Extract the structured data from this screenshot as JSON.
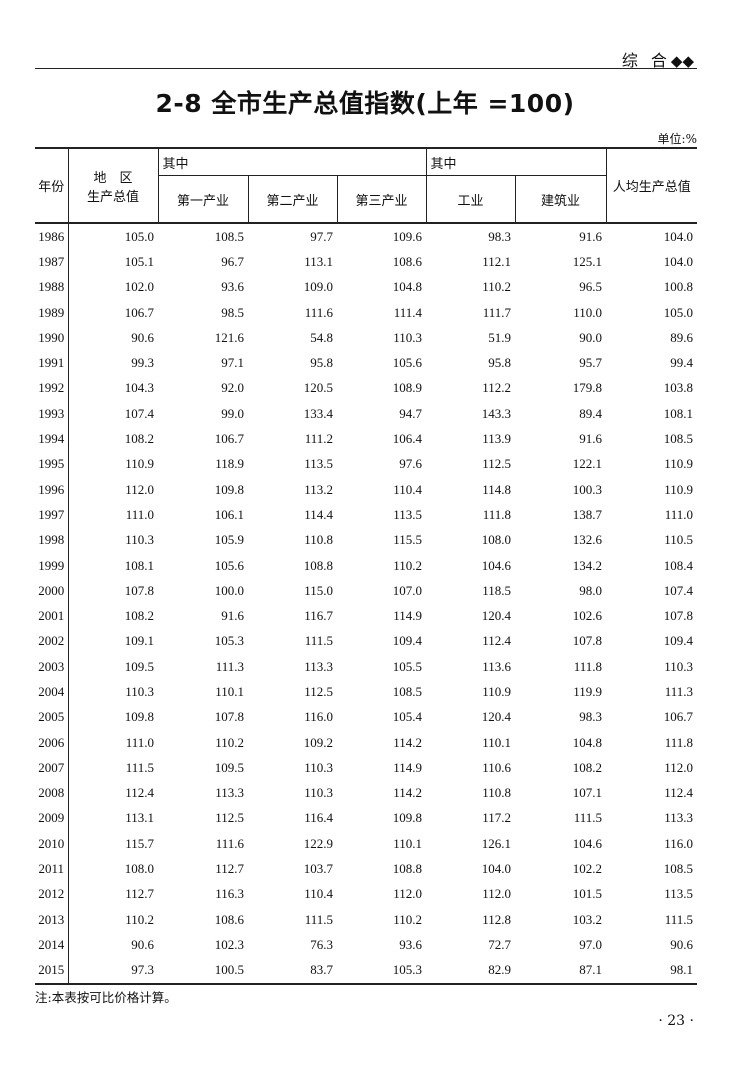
{
  "running_header": {
    "section": "综 合",
    "ornament": "◆◆"
  },
  "title": "2-8 全市生产总值指数(上年 =100)",
  "unit": "单位:%",
  "table": {
    "headers": {
      "year": "年份",
      "gdp_line1": "地　区",
      "gdp_line2": "生产总值",
      "group1": "其中",
      "group2": "其中",
      "primary": "第一产业",
      "secondary": "第二产业",
      "tertiary": "第三产业",
      "industry": "工业",
      "construction": "建筑业",
      "per_capita": "人均生产总值"
    },
    "rows": [
      [
        "1986",
        "105.0",
        "108.5",
        "97.7",
        "109.6",
        "98.3",
        "91.6",
        "104.0"
      ],
      [
        "1987",
        "105.1",
        "96.7",
        "113.1",
        "108.6",
        "112.1",
        "125.1",
        "104.0"
      ],
      [
        "1988",
        "102.0",
        "93.6",
        "109.0",
        "104.8",
        "110.2",
        "96.5",
        "100.8"
      ],
      [
        "1989",
        "106.7",
        "98.5",
        "111.6",
        "111.4",
        "111.7",
        "110.0",
        "105.0"
      ],
      [
        "1990",
        "90.6",
        "121.6",
        "54.8",
        "110.3",
        "51.9",
        "90.0",
        "89.6"
      ],
      [
        "1991",
        "99.3",
        "97.1",
        "95.8",
        "105.6",
        "95.8",
        "95.7",
        "99.4"
      ],
      [
        "1992",
        "104.3",
        "92.0",
        "120.5",
        "108.9",
        "112.2",
        "179.8",
        "103.8"
      ],
      [
        "1993",
        "107.4",
        "99.0",
        "133.4",
        "94.7",
        "143.3",
        "89.4",
        "108.1"
      ],
      [
        "1994",
        "108.2",
        "106.7",
        "111.2",
        "106.4",
        "113.9",
        "91.6",
        "108.5"
      ],
      [
        "1995",
        "110.9",
        "118.9",
        "113.5",
        "97.6",
        "112.5",
        "122.1",
        "110.9"
      ],
      [
        "1996",
        "112.0",
        "109.8",
        "113.2",
        "110.4",
        "114.8",
        "100.3",
        "110.9"
      ],
      [
        "1997",
        "111.0",
        "106.1",
        "114.4",
        "113.5",
        "111.8",
        "138.7",
        "111.0"
      ],
      [
        "1998",
        "110.3",
        "105.9",
        "110.8",
        "115.5",
        "108.0",
        "132.6",
        "110.5"
      ],
      [
        "1999",
        "108.1",
        "105.6",
        "108.8",
        "110.2",
        "104.6",
        "134.2",
        "108.4"
      ],
      [
        "2000",
        "107.8",
        "100.0",
        "115.0",
        "107.0",
        "118.5",
        "98.0",
        "107.4"
      ],
      [
        "2001",
        "108.2",
        "91.6",
        "116.7",
        "114.9",
        "120.4",
        "102.6",
        "107.8"
      ],
      [
        "2002",
        "109.1",
        "105.3",
        "111.5",
        "109.4",
        "112.4",
        "107.8",
        "109.4"
      ],
      [
        "2003",
        "109.5",
        "111.3",
        "113.3",
        "105.5",
        "113.6",
        "111.8",
        "110.3"
      ],
      [
        "2004",
        "110.3",
        "110.1",
        "112.5",
        "108.5",
        "110.9",
        "119.9",
        "111.3"
      ],
      [
        "2005",
        "109.8",
        "107.8",
        "116.0",
        "105.4",
        "120.4",
        "98.3",
        "106.7"
      ],
      [
        "2006",
        "111.0",
        "110.2",
        "109.2",
        "114.2",
        "110.1",
        "104.8",
        "111.8"
      ],
      [
        "2007",
        "111.5",
        "109.5",
        "110.3",
        "114.9",
        "110.6",
        "108.2",
        "112.0"
      ],
      [
        "2008",
        "112.4",
        "113.3",
        "110.3",
        "114.2",
        "110.8",
        "107.1",
        "112.4"
      ],
      [
        "2009",
        "113.1",
        "112.5",
        "116.4",
        "109.8",
        "117.2",
        "111.5",
        "113.3"
      ],
      [
        "2010",
        "115.7",
        "111.6",
        "122.9",
        "110.1",
        "126.1",
        "104.6",
        "116.0"
      ],
      [
        "2011",
        "108.0",
        "112.7",
        "103.7",
        "108.8",
        "104.0",
        "102.2",
        "108.5"
      ],
      [
        "2012",
        "112.7",
        "116.3",
        "110.4",
        "112.0",
        "112.0",
        "101.5",
        "113.5"
      ],
      [
        "2013",
        "110.2",
        "108.6",
        "111.5",
        "110.2",
        "112.8",
        "103.2",
        "111.5"
      ],
      [
        "2014",
        "90.6",
        "102.3",
        "76.3",
        "93.6",
        "72.7",
        "97.0",
        "90.6"
      ],
      [
        "2015",
        "97.3",
        "100.5",
        "83.7",
        "105.3",
        "82.9",
        "87.1",
        "98.1"
      ]
    ]
  },
  "note": "注:本表按可比价格计算。",
  "page_number": "· 23 ·"
}
